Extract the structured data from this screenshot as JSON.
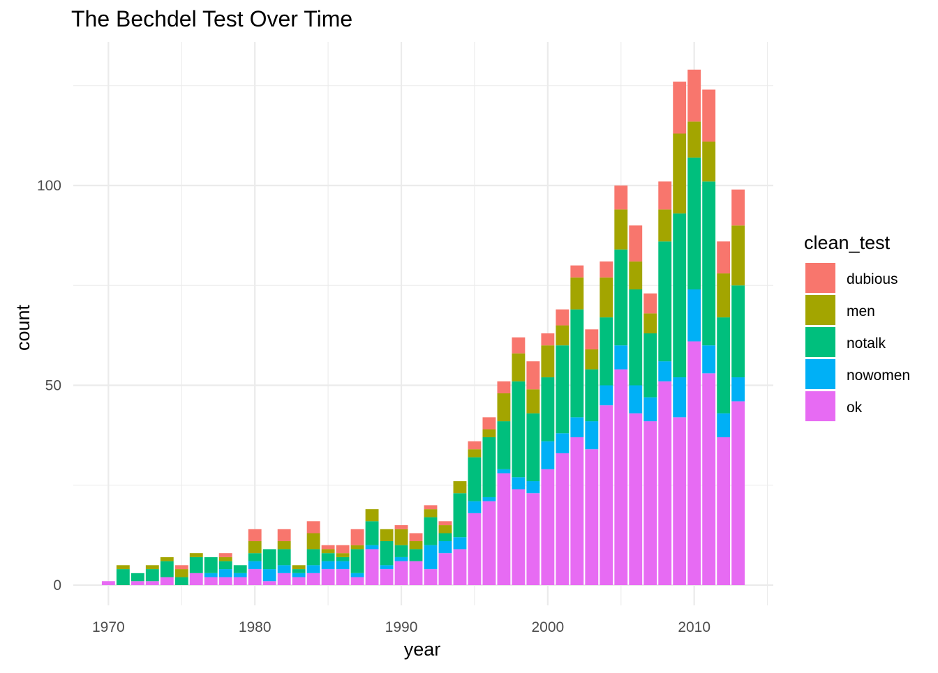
{
  "chart_data": {
    "type": "bar",
    "stacked": true,
    "title": "The Bechdel Test Over Time",
    "xlabel": "year",
    "ylabel": "count",
    "xlim": [
      1967.6,
      2015.4
    ],
    "ylim": [
      0,
      128
    ],
    "x_ticks": [
      1970,
      1980,
      1990,
      2000,
      2010
    ],
    "y_ticks": [
      0,
      50,
      100
    ],
    "grid": true,
    "legend": {
      "title": "clean_test",
      "position": "right"
    },
    "x": [
      1970,
      1971,
      1972,
      1973,
      1974,
      1975,
      1976,
      1977,
      1978,
      1979,
      1980,
      1981,
      1982,
      1983,
      1984,
      1985,
      1986,
      1987,
      1988,
      1989,
      1990,
      1991,
      1992,
      1993,
      1994,
      1995,
      1996,
      1997,
      1998,
      1999,
      2000,
      2001,
      2002,
      2003,
      2004,
      2005,
      2006,
      2007,
      2008,
      2009,
      2010,
      2011,
      2012,
      2013
    ],
    "series": [
      {
        "name": "ok",
        "color": "#E76BF3",
        "values": [
          1,
          0,
          1,
          1,
          2,
          0,
          3,
          2,
          2,
          2,
          4,
          1,
          3,
          2,
          3,
          4,
          4,
          2,
          9,
          4,
          6,
          6,
          4,
          8,
          9,
          18,
          21,
          28,
          24,
          23,
          29,
          33,
          37,
          34,
          45,
          54,
          43,
          41,
          51,
          42,
          61,
          53,
          37,
          46
        ]
      },
      {
        "name": "nowomen",
        "color": "#00B0F6",
        "values": [
          0,
          0,
          0,
          0,
          0,
          0,
          0,
          1,
          2,
          1,
          2,
          3,
          2,
          1,
          2,
          2,
          2,
          1,
          1,
          1,
          1,
          0,
          6,
          3,
          3,
          3,
          1,
          1,
          3,
          3,
          7,
          5,
          5,
          7,
          5,
          6,
          7,
          6,
          5,
          10,
          13,
          7,
          6,
          6
        ]
      },
      {
        "name": "notalk",
        "color": "#00BF7D",
        "values": [
          0,
          4,
          2,
          3,
          4,
          2,
          4,
          4,
          2,
          2,
          2,
          5,
          4,
          1,
          4,
          2,
          1,
          6,
          6,
          6,
          3,
          3,
          7,
          2,
          11,
          11,
          15,
          12,
          24,
          17,
          16,
          22,
          27,
          13,
          17,
          24,
          24,
          16,
          30,
          41,
          33,
          41,
          24,
          23
        ]
      },
      {
        "name": "men",
        "color": "#A3A500",
        "values": [
          0,
          1,
          0,
          1,
          1,
          2,
          1,
          0,
          1,
          0,
          3,
          0,
          2,
          1,
          4,
          1,
          1,
          1,
          3,
          3,
          4,
          2,
          2,
          2,
          3,
          2,
          2,
          7,
          7,
          6,
          8,
          5,
          8,
          5,
          10,
          10,
          7,
          5,
          8,
          20,
          9,
          10,
          11,
          15
        ]
      },
      {
        "name": "dubious",
        "color": "#F8766D",
        "values": [
          0,
          0,
          0,
          0,
          0,
          1,
          0,
          0,
          1,
          0,
          3,
          0,
          3,
          0,
          3,
          1,
          2,
          4,
          0,
          0,
          1,
          2,
          1,
          1,
          0,
          2,
          3,
          3,
          4,
          7,
          3,
          4,
          3,
          5,
          4,
          6,
          9,
          5,
          7,
          13,
          13,
          13,
          8,
          9
        ]
      }
    ]
  }
}
